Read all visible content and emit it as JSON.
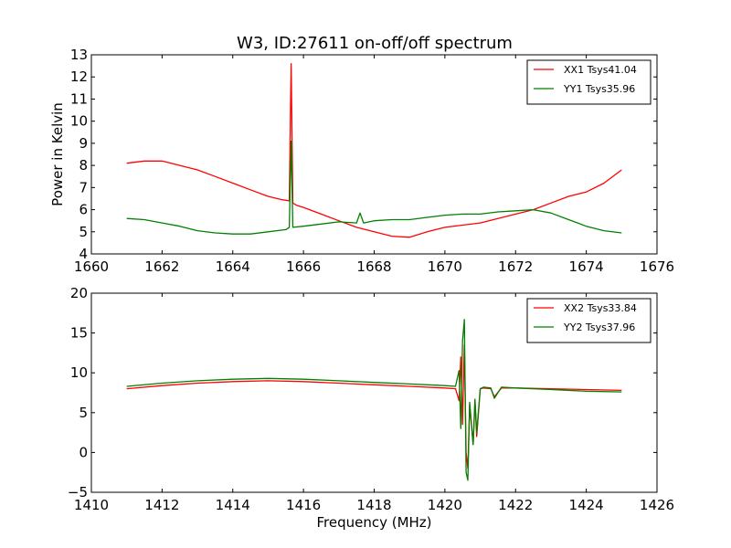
{
  "figure": {
    "title": "W3, ID:27611 on-off/off spectrum"
  },
  "chart_data": [
    {
      "type": "line",
      "title": "W3, ID:27611 on-off/off spectrum",
      "xlabel": "",
      "ylabel": "Power in Kelvin",
      "xlim": [
        1660,
        1676
      ],
      "ylim": [
        4,
        13
      ],
      "xticks": [
        "1660",
        "1662",
        "1664",
        "1666",
        "1668",
        "1670",
        "1672",
        "1674",
        "1676"
      ],
      "yticks": [
        "4",
        "5",
        "6",
        "7",
        "8",
        "9",
        "10",
        "11",
        "12",
        "13"
      ],
      "legend_position": "top-right",
      "grid": false,
      "series": [
        {
          "name": "XX1 Tsys41.04",
          "color": "#ff0000",
          "x": [
            1661,
            1661.5,
            1662,
            1662.5,
            1663,
            1663.5,
            1664,
            1664.5,
            1665,
            1665.4,
            1665.6,
            1665.65,
            1665.7,
            1665.8,
            1666,
            1666.5,
            1667,
            1667.5,
            1668,
            1668.5,
            1669,
            1669.5,
            1670,
            1670.5,
            1671,
            1671.5,
            1672,
            1672.5,
            1673,
            1673.5,
            1674,
            1674.5,
            1675
          ],
          "y": [
            8.1,
            8.2,
            8.2,
            8.0,
            7.8,
            7.5,
            7.2,
            6.9,
            6.6,
            6.45,
            6.4,
            12.6,
            6.3,
            6.2,
            6.1,
            5.8,
            5.5,
            5.2,
            5.0,
            4.8,
            4.75,
            5.0,
            5.2,
            5.3,
            5.4,
            5.6,
            5.8,
            6.0,
            6.3,
            6.6,
            6.8,
            7.2,
            7.8
          ]
        },
        {
          "name": "YY1 Tsys35.96",
          "color": "#008000",
          "x": [
            1661,
            1661.5,
            1662,
            1662.5,
            1663,
            1663.5,
            1664,
            1664.5,
            1665,
            1665.5,
            1665.6,
            1665.65,
            1665.7,
            1666,
            1666.5,
            1667,
            1667.5,
            1667.6,
            1667.7,
            1668,
            1668.5,
            1669,
            1669.5,
            1670,
            1670.5,
            1671,
            1671.5,
            1672,
            1672.5,
            1673,
            1673.5,
            1674,
            1674.5,
            1675
          ],
          "y": [
            5.6,
            5.55,
            5.4,
            5.25,
            5.05,
            4.95,
            4.9,
            4.9,
            5.0,
            5.1,
            5.2,
            9.1,
            5.2,
            5.25,
            5.35,
            5.45,
            5.4,
            5.85,
            5.4,
            5.5,
            5.55,
            5.55,
            5.65,
            5.75,
            5.8,
            5.8,
            5.9,
            5.95,
            6.0,
            5.85,
            5.55,
            5.25,
            5.05,
            4.95
          ]
        }
      ]
    },
    {
      "type": "line",
      "title": "",
      "xlabel": "Frequency (MHz)",
      "ylabel": "",
      "xlim": [
        1410,
        1426
      ],
      "ylim": [
        -5,
        20
      ],
      "xticks": [
        "1410",
        "1412",
        "1414",
        "1416",
        "1418",
        "1420",
        "1422",
        "1424",
        "1426"
      ],
      "yticks": [
        "−5",
        "0",
        "5",
        "10",
        "15",
        "20"
      ],
      "legend_position": "top-right",
      "grid": false,
      "series": [
        {
          "name": "XX2 Tsys33.84",
          "color": "#ff0000",
          "x": [
            1411,
            1412,
            1413,
            1414,
            1415,
            1416,
            1417,
            1418,
            1419,
            1420,
            1420.3,
            1420.4,
            1420.45,
            1420.5,
            1420.55,
            1420.6,
            1420.65,
            1420.7,
            1420.8,
            1420.85,
            1420.9,
            1421.0,
            1421.1,
            1421.3,
            1421.4,
            1421.6,
            1422,
            1423,
            1424,
            1425
          ],
          "y": [
            8.0,
            8.4,
            8.7,
            8.9,
            9.0,
            8.9,
            8.7,
            8.5,
            8.3,
            8.1,
            8.0,
            6.5,
            12.0,
            3.5,
            13.5,
            0.0,
            -2.0,
            6.0,
            1.0,
            6.5,
            2.0,
            8.0,
            8.1,
            8.0,
            7.0,
            8.1,
            8.1,
            8.0,
            7.9,
            7.8
          ]
        },
        {
          "name": "YY2 Tsys37.96",
          "color": "#008000",
          "x": [
            1411,
            1412,
            1413,
            1414,
            1415,
            1416,
            1417,
            1418,
            1419,
            1420,
            1420.3,
            1420.4,
            1420.45,
            1420.5,
            1420.55,
            1420.6,
            1420.65,
            1420.7,
            1420.8,
            1420.85,
            1420.9,
            1421.0,
            1421.1,
            1421.3,
            1421.4,
            1421.6,
            1422,
            1423,
            1424,
            1425
          ],
          "y": [
            8.3,
            8.7,
            9.0,
            9.2,
            9.3,
            9.2,
            9.0,
            8.8,
            8.6,
            8.4,
            8.3,
            10.3,
            3.0,
            14.0,
            16.7,
            -2.5,
            -3.5,
            6.3,
            1.0,
            6.7,
            2.5,
            8.0,
            8.2,
            8.1,
            6.8,
            8.2,
            8.1,
            7.9,
            7.7,
            7.6
          ]
        }
      ]
    }
  ]
}
